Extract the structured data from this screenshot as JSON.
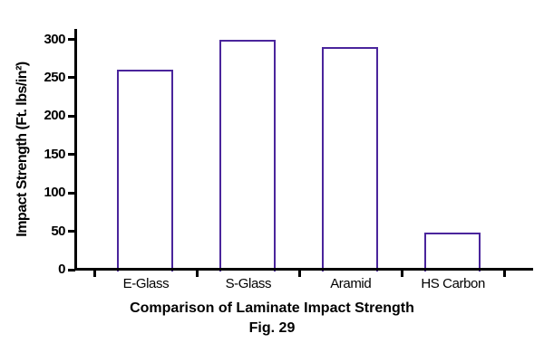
{
  "chart_data": {
    "type": "bar",
    "categories": [
      "E-Glass",
      "S-Glass",
      "Aramid",
      "HS Carbon"
    ],
    "values": [
      260,
      300,
      290,
      48
    ],
    "title": "Comparison of Laminate Impact Strength",
    "fig_caption": "Fig. 29",
    "xlabel": "",
    "ylabel": "Impact Strength (Ft. lbs/in²)",
    "ylim": [
      0,
      300
    ],
    "yticks": [
      0,
      50,
      100,
      150,
      200,
      250,
      300
    ],
    "grid": false,
    "legend": false,
    "bar_fill": "#ffffff",
    "bar_outline": "#4a259c",
    "axis_color": "#000000",
    "text_color": "#000000"
  }
}
